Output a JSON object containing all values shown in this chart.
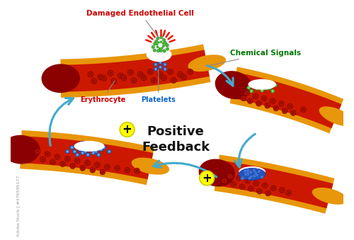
{
  "label_damaged": "Damaged Endothelial Cell",
  "label_chemical": "Chemical Signals",
  "label_erythrocyte": "Erythrocyte",
  "label_platelets": "Platelets",
  "label_positive_feedback": "Positive\nFeedback",
  "bg_color": "#ffffff",
  "vessel_outer_color": "#E8960A",
  "vessel_inner_color": "#CC1800",
  "vessel_dark": "#8B0000",
  "rbc_color": "#AA1100",
  "rbc_dark": "#660000",
  "platelet_blue": "#3377CC",
  "platelet_green": "#44AA44",
  "clot_blue": "#2255AA",
  "arrow_color": "#44AACC",
  "plus_bg": "#FFFF00",
  "plus_border": "#CCCC00",
  "label_red": "#CC0000",
  "label_blue": "#1166CC",
  "label_green": "#007700",
  "label_black": "#111111",
  "watermark_color": "#999999"
}
